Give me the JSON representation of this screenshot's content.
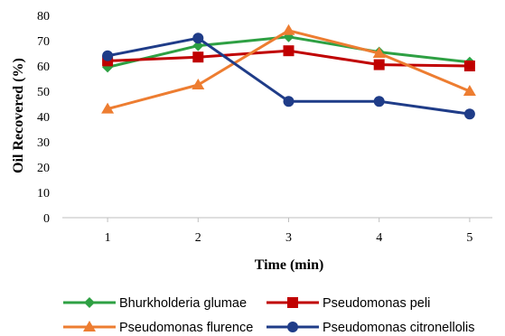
{
  "chart_data": {
    "type": "line",
    "title": "",
    "xlabel": "Time (min)",
    "ylabel": "Oil Recovered (%)",
    "x": [
      1,
      2,
      3,
      4,
      5
    ],
    "xlim": [
      0.5,
      5.5
    ],
    "ylim": [
      0,
      80
    ],
    "yticks": [
      0,
      10,
      20,
      30,
      40,
      50,
      60,
      70,
      80
    ],
    "grid": false,
    "legend_position": "bottom",
    "series": [
      {
        "name": "Bhurkholderia glumae",
        "values": [
          59.5,
          68,
          71.5,
          65.5,
          61.5
        ],
        "color": "#2ea043",
        "marker": "diamond"
      },
      {
        "name": "Pseudomonas peli",
        "values": [
          62,
          63.5,
          66,
          60.5,
          60
        ],
        "color": "#c00000",
        "marker": "square"
      },
      {
        "name": "Pseudomonas flurence",
        "values": [
          43,
          52.5,
          74,
          65,
          50
        ],
        "color": "#ed7d31",
        "marker": "triangle"
      },
      {
        "name": "Pseudomonas citronellolis",
        "values": [
          64,
          71,
          46,
          46,
          41
        ],
        "color": "#1f3c88",
        "marker": "circle"
      }
    ]
  }
}
